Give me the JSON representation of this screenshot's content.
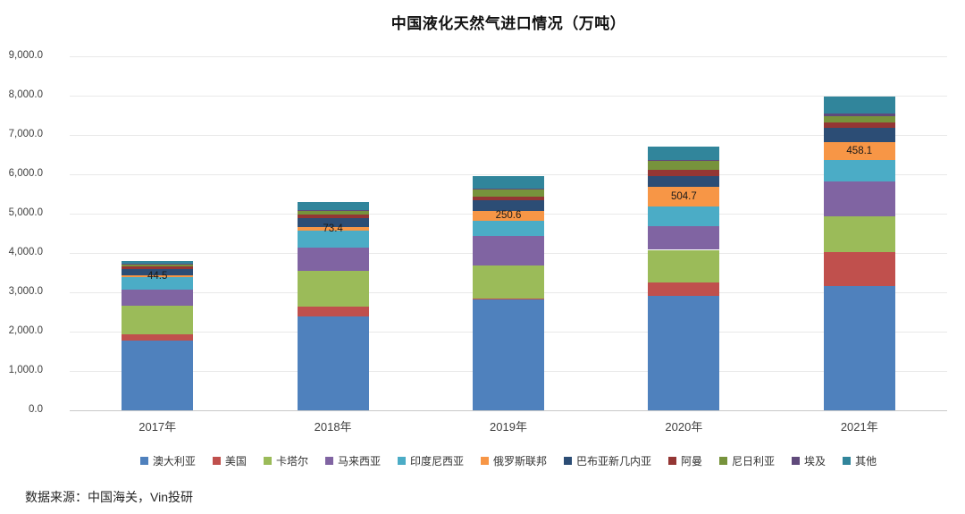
{
  "title": "中国液化天然气进口情况（万吨）",
  "source_note": "数据来源：中国海关，Vin投研",
  "chart_data": {
    "type": "bar",
    "subtype": "stacked",
    "title": "中国液化天然气进口情况（万吨）",
    "categories": [
      "2017年",
      "2018年",
      "2019年",
      "2020年",
      "2021年"
    ],
    "series": [
      {
        "name": "澳大利亚",
        "color": "#4F81BD",
        "values": [
          1776,
          2386,
          2822,
          2920,
          3150
        ]
      },
      {
        "name": "美国",
        "color": "#C0504D",
        "values": [
          153,
          245,
          30,
          320,
          876
        ]
      },
      {
        "name": "卡塔尔",
        "color": "#9BBB59",
        "values": [
          725,
          922,
          840,
          840,
          915
        ]
      },
      {
        "name": "马来西亚",
        "color": "#8064A2",
        "values": [
          420,
          588,
          746,
          611,
          879
        ]
      },
      {
        "name": "印度尼西亚",
        "color": "#4BACC6",
        "values": [
          310,
          435,
          382,
          494,
          533
        ]
      },
      {
        "name": "俄罗斯联邦",
        "color": "#F79646",
        "values": [
          44.5,
          73.4,
          250.6,
          504.7,
          458.1
        ]
      },
      {
        "name": "巴布亚新几内亚",
        "color": "#2C4D75",
        "values": [
          160,
          245,
          260,
          268,
          382
        ]
      },
      {
        "name": "阿曼",
        "color": "#943634",
        "values": [
          70,
          76,
          98,
          167,
          130
        ]
      },
      {
        "name": "尼日利亚",
        "color": "#77933C",
        "values": [
          50,
          114,
          206,
          229,
          151
        ]
      },
      {
        "name": "埃及",
        "color": "#604A7B",
        "values": [
          10,
          10,
          10,
          15,
          78
        ]
      },
      {
        "name": "其他",
        "color": "#31859B",
        "values": [
          85,
          206,
          313,
          343,
          426
        ]
      }
    ],
    "data_labels": {
      "series": "俄罗斯联邦",
      "values": [
        "44.5",
        "73.4",
        "250.6",
        "504.7",
        "458.1"
      ]
    },
    "ylim": [
      0,
      9000
    ],
    "y_tick_step": 1000,
    "y_tick_labels": [
      "0.0",
      "1,000.0",
      "2,000.0",
      "3,000.0",
      "4,000.0",
      "5,000.0",
      "6,000.0",
      "7,000.0",
      "8,000.0",
      "9,000.0"
    ],
    "grid": "horizontal",
    "legend_position": "bottom"
  }
}
